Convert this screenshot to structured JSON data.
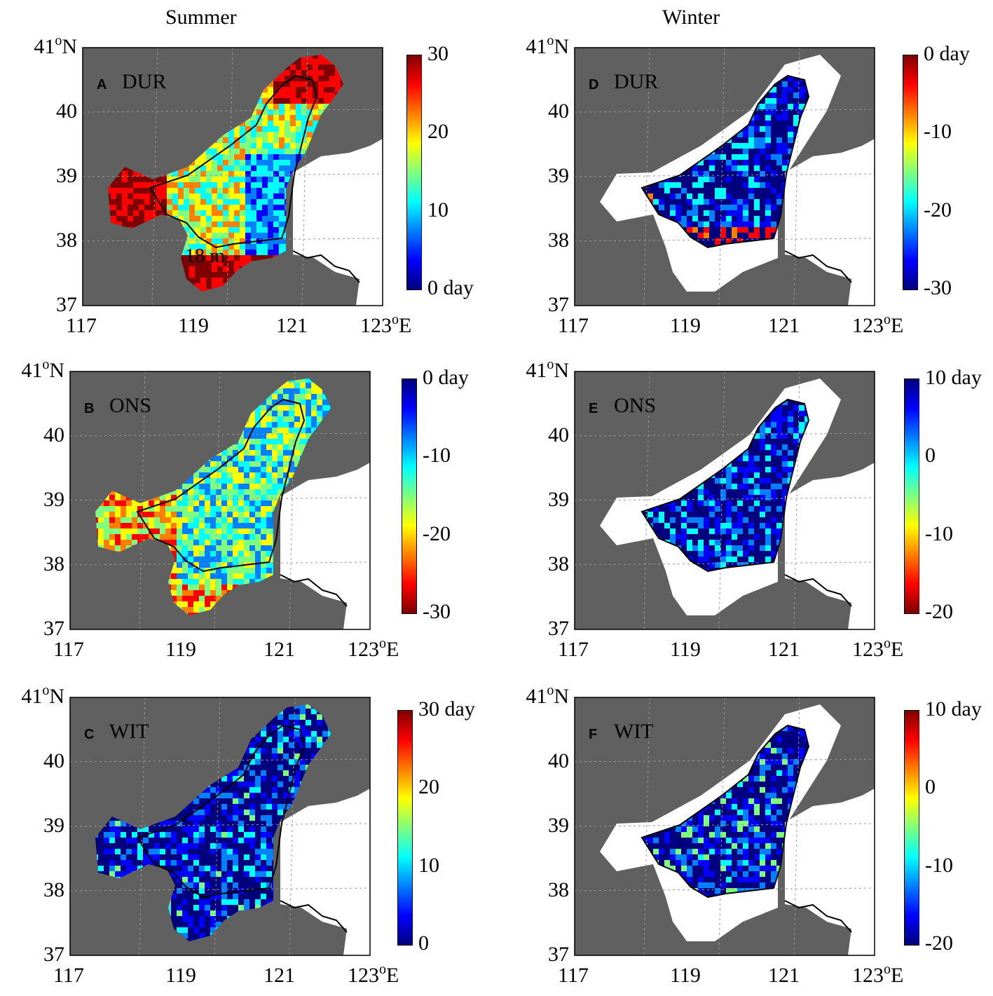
{
  "columns": {
    "summer": "Summer",
    "winter": "Winter"
  },
  "lon_ticks": [
    "117",
    "119",
    "121",
    "123"
  ],
  "lon_unit": "o",
  "lon_suffix": "E",
  "lat_ticks": [
    "41",
    "40",
    "39",
    "38",
    "37"
  ],
  "lat_unit": "o",
  "lat_suffix": "N",
  "contour_label": "18 m",
  "colors": {
    "land": "#606060",
    "sea_white": "#ffffff",
    "contour": "#000000",
    "grid": "#999999",
    "jet": [
      "#00007f",
      "#0000ff",
      "#007fff",
      "#00ffff",
      "#7fff7f",
      "#ffff00",
      "#ff7f00",
      "#ff0000",
      "#7f0000"
    ]
  },
  "panels": [
    {
      "id": "A",
      "var": "DUR",
      "season": "Summer",
      "cbar_ticks": [
        "30",
        "20",
        "10",
        "0 day"
      ],
      "cbar_direction": "red-top",
      "dominant": "warm"
    },
    {
      "id": "B",
      "var": "ONS",
      "season": "Summer",
      "cbar_ticks": [
        "0 day",
        "-10",
        "-20",
        "-30"
      ],
      "cbar_direction": "blue-top",
      "dominant": "mixed"
    },
    {
      "id": "C",
      "var": "WIT",
      "season": "Summer",
      "cbar_ticks": [
        "30 day",
        "20",
        "10",
        "0"
      ],
      "cbar_direction": "red-top",
      "dominant": "cold"
    },
    {
      "id": "D",
      "var": "DUR",
      "season": "Winter",
      "cbar_ticks": [
        "0 day",
        "-10",
        "-20",
        "-30"
      ],
      "cbar_direction": "red-top",
      "dominant": "cold"
    },
    {
      "id": "E",
      "var": "ONS",
      "season": "Winter",
      "cbar_ticks": [
        "10 day",
        "0",
        "-10",
        "-20"
      ],
      "cbar_direction": "blue-top",
      "dominant": "cold"
    },
    {
      "id": "F",
      "var": "WIT",
      "season": "Winter",
      "cbar_ticks": [
        "10 day",
        "0",
        "-10",
        "-20"
      ],
      "cbar_direction": "red-top",
      "dominant": "cold"
    }
  ]
}
